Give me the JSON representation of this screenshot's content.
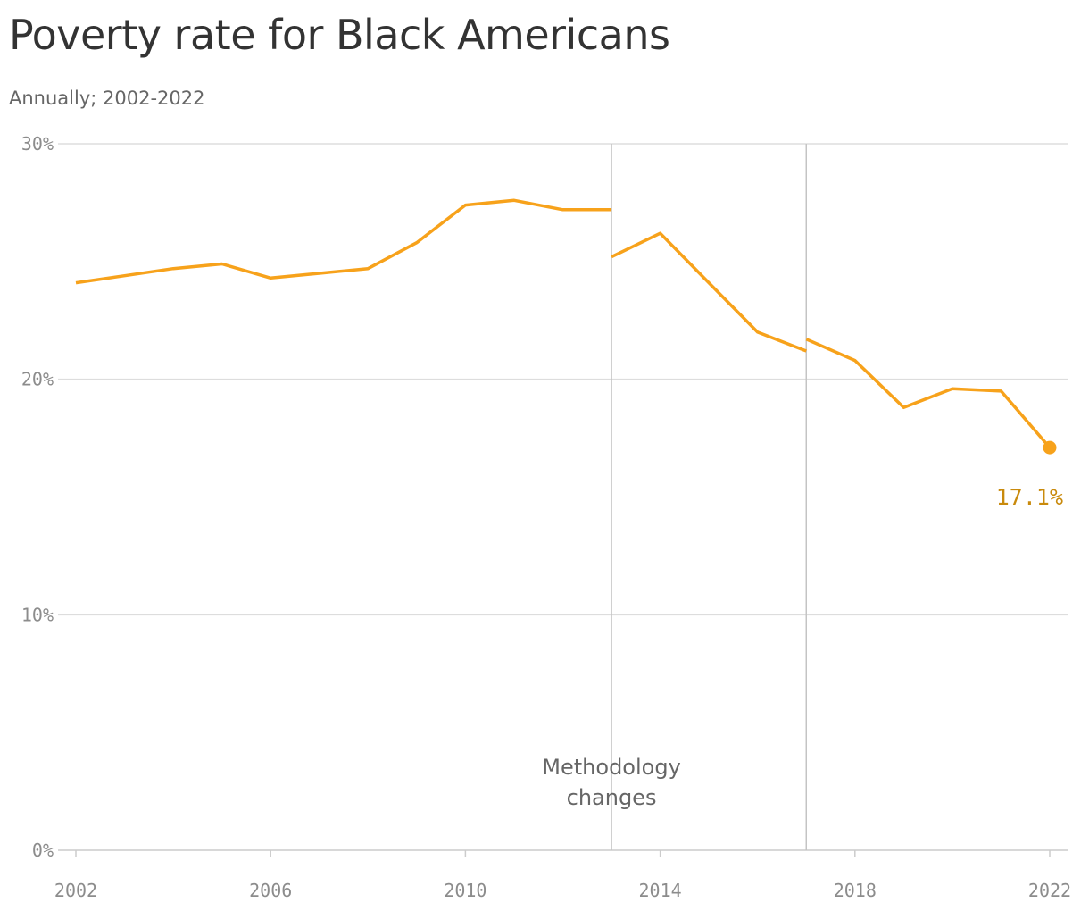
{
  "chart_data": {
    "type": "line",
    "title": "Poverty rate for Black Americans",
    "subtitle": "Annually; 2002-2022",
    "xlabel": "",
    "ylabel": "",
    "xlim": [
      2002,
      2022
    ],
    "ylim": [
      0,
      30
    ],
    "x_ticks": [
      2002,
      2006,
      2010,
      2014,
      2018,
      2022
    ],
    "x_tick_labels": [
      "2002",
      "2006",
      "2010",
      "2014",
      "2018",
      "2022"
    ],
    "y_ticks": [
      0,
      10,
      20,
      30
    ],
    "y_tick_labels": [
      "0%",
      "10%",
      "20%",
      "30%"
    ],
    "grid": "horizontal",
    "line_color": "#f7a21b",
    "label_color": "#c98a0c",
    "segments": [
      {
        "x": [
          2002,
          2003,
          2004,
          2005,
          2006,
          2007,
          2008,
          2009,
          2010,
          2011,
          2012,
          2013
        ],
        "y": [
          24.1,
          24.4,
          24.7,
          24.9,
          24.3,
          24.5,
          24.7,
          25.8,
          27.4,
          27.6,
          27.2,
          27.2
        ]
      },
      {
        "x": [
          2013,
          2014,
          2015,
          2016,
          2017
        ],
        "y": [
          25.2,
          26.2,
          24.1,
          22.0,
          21.2
        ]
      },
      {
        "x": [
          2017,
          2018,
          2019,
          2020,
          2021,
          2022
        ],
        "y": [
          21.7,
          20.8,
          18.8,
          19.6,
          19.5,
          17.1
        ]
      }
    ],
    "reference_lines": [
      2013,
      2017
    ],
    "annotation": {
      "x": 2013,
      "lines": [
        "Methodology",
        "changes"
      ]
    },
    "end_point": {
      "x": 2022,
      "y": 17.1,
      "label": "17.1%"
    }
  }
}
